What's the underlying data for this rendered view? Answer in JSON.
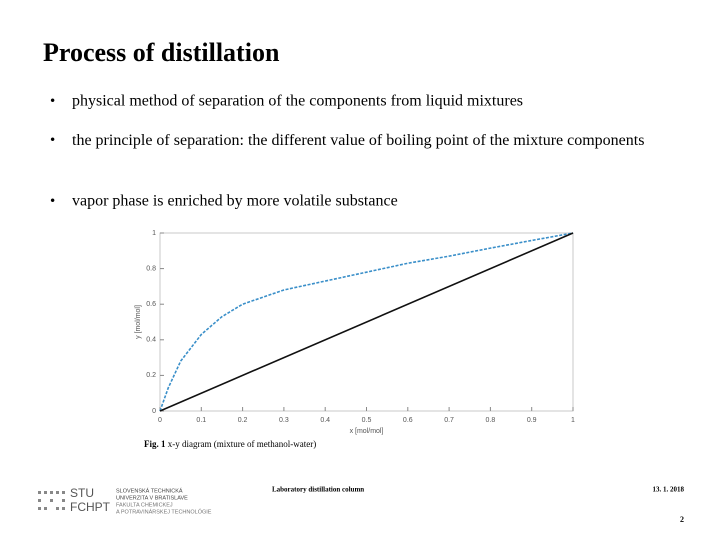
{
  "header": {
    "title": "Process of distillation"
  },
  "bullets": [
    "physical method of separation of the components from liquid mixtures",
    "the principle of separation: the different value of boiling point of the mixture components",
    "vapor phase is enriched by more volatile substance"
  ],
  "figure": {
    "type": "line",
    "xlabel": "x [mol/mol]",
    "ylabel": "y [mol/mol]",
    "xlim": [
      0,
      1
    ],
    "ylim": [
      0,
      1
    ],
    "xticks": [
      0,
      0.1,
      0.2,
      0.3,
      0.4,
      0.5,
      0.6,
      0.7,
      0.8,
      0.9,
      1
    ],
    "yticks": [
      0,
      0.2,
      0.4,
      0.6,
      0.8,
      1
    ],
    "series": [
      {
        "color": "#3a8fc9",
        "dashed": true,
        "x": [
          0,
          0.02,
          0.05,
          0.1,
          0.15,
          0.2,
          0.3,
          0.4,
          0.5,
          0.6,
          0.7,
          0.8,
          0.9,
          1
        ],
        "values": [
          0,
          0.13,
          0.28,
          0.43,
          0.53,
          0.6,
          0.68,
          0.73,
          0.78,
          0.83,
          0.87,
          0.915,
          0.958,
          1
        ]
      },
      {
        "color": "#111111",
        "dashed": false,
        "x": [
          0,
          1
        ],
        "values": [
          0,
          1
        ]
      }
    ]
  },
  "caption": {
    "label": "Fig. 1",
    "text": "x-y diagram (mixture of methanol-water)"
  },
  "footer": {
    "logo_short": [
      "STU",
      "FCHPT"
    ],
    "logo_long": [
      "SLOVENSKÁ TECHNICKÁ",
      "UNIVERZITA V BRATISLAVE",
      "FAKULTA CHEMICKEJ",
      "A POTRAVINÁRSKEJ TECHNOLÓGIE"
    ],
    "center": "Laboratory distillation column",
    "date": "13. 1. 2018",
    "page": "2"
  }
}
